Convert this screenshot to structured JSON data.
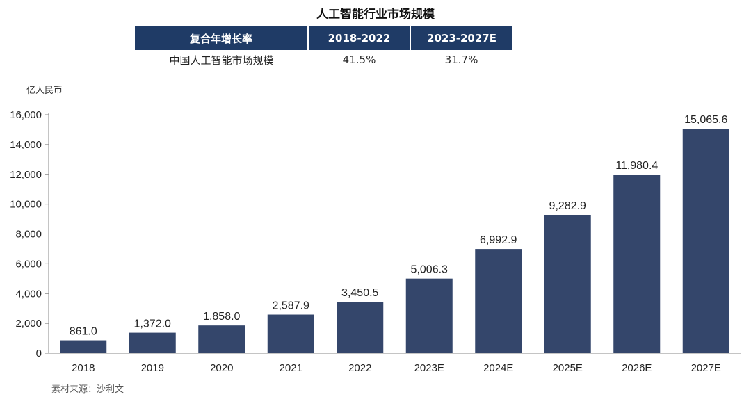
{
  "title": "人工智能行业市场规模",
  "cagr_table": {
    "header": [
      "复合年增长率",
      "2018-2022",
      "2023-2027E"
    ],
    "row": [
      "中国人工智能市场规模",
      "41.5%",
      "31.7%"
    ]
  },
  "unit": "亿人民币",
  "source": "素材来源：沙利文",
  "colors": {
    "bar": "#34466b",
    "header": "#1f3b66"
  },
  "chart_data": {
    "type": "bar",
    "title": "人工智能行业市场规模",
    "xlabel": "",
    "ylabel": "亿人民币",
    "categories": [
      "2018",
      "2019",
      "2020",
      "2021",
      "2022",
      "2023E",
      "2024E",
      "2025E",
      "2026E",
      "2027E"
    ],
    "values": [
      861.0,
      1372.0,
      1858.0,
      2587.9,
      3450.5,
      5006.3,
      6992.9,
      9282.9,
      11980.4,
      15065.6
    ],
    "value_labels": [
      "861.0",
      "1,372.0",
      "1,858.0",
      "2,587.9",
      "3,450.5",
      "5,006.3",
      "6,992.9",
      "9,282.9",
      "11,980.4",
      "15,065.6"
    ],
    "ylim": [
      0,
      16000
    ],
    "yticks": [
      0,
      2000,
      4000,
      6000,
      8000,
      10000,
      12000,
      14000,
      16000
    ],
    "ytick_labels": [
      "0",
      "2,000",
      "4,000",
      "6,000",
      "8,000",
      "10,000",
      "12,000",
      "14,000",
      "16,000"
    ],
    "grid": false,
    "legend": "none"
  }
}
